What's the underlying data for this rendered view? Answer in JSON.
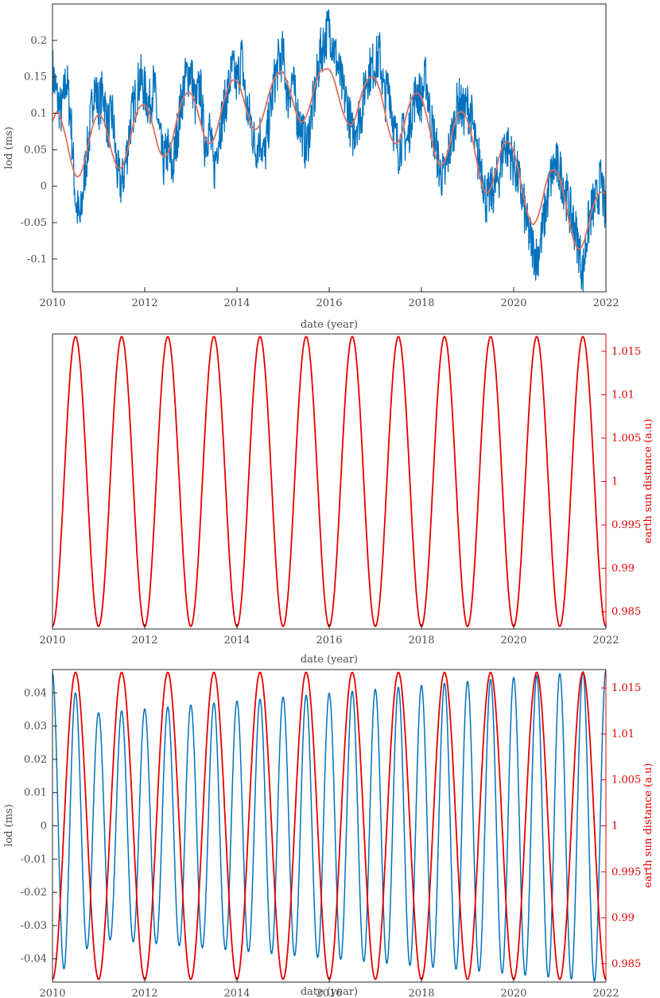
{
  "chart_data": [
    {
      "type": "line",
      "xlabel": "date (year)",
      "ylabel": "lod (ms)",
      "xlim": [
        2010,
        2022
      ],
      "ylim": [
        -0.145,
        0.25
      ],
      "xticks": [
        "2010",
        "2012",
        "2014",
        "2016",
        "2018",
        "2020",
        "2022"
      ],
      "yticks": [
        "-0.1",
        "-0.05",
        "0",
        "0.05",
        "0.1",
        "0.15",
        "0.2"
      ],
      "grid": false,
      "colors": [
        "#0072bd",
        "#e07060"
      ],
      "series": [
        {
          "x": [
            2010.0,
            2010.1,
            2010.2,
            2010.3,
            2010.4,
            2010.5,
            2010.6,
            2010.7,
            2010.8,
            2010.9,
            2011.0,
            2011.1,
            2011.2,
            2011.3,
            2011.4,
            2011.5,
            2011.6,
            2011.7,
            2011.8,
            2011.9,
            2012.0,
            2012.1,
            2012.2,
            2012.3,
            2012.4,
            2012.5,
            2012.6,
            2012.7,
            2012.8,
            2012.9,
            2013.0,
            2013.1,
            2013.2,
            2013.3,
            2013.4,
            2013.5,
            2013.6,
            2013.7,
            2013.8,
            2013.9,
            2014.0,
            2014.1,
            2014.2,
            2014.3,
            2014.4,
            2014.5,
            2014.6,
            2014.7,
            2014.8,
            2014.9,
            2015.0,
            2015.1,
            2015.2,
            2015.3,
            2015.4,
            2015.5,
            2015.6,
            2015.7,
            2015.8,
            2015.9,
            2016.0,
            2016.1,
            2016.2,
            2016.3,
            2016.4,
            2016.5,
            2016.6,
            2016.7,
            2016.8,
            2016.9,
            2017.0,
            2017.1,
            2017.2,
            2017.3,
            2017.4,
            2017.5,
            2017.6,
            2017.7,
            2017.8,
            2017.9,
            2018.0,
            2018.1,
            2018.2,
            2018.3,
            2018.4,
            2018.5,
            2018.6,
            2018.7,
            2018.8,
            2018.9,
            2019.0,
            2019.1,
            2019.2,
            2019.3,
            2019.4,
            2019.5,
            2019.6,
            2019.7,
            2019.8,
            2019.9,
            2020.0,
            2020.1,
            2020.2,
            2020.3,
            2020.4,
            2020.5,
            2020.6,
            2020.7,
            2020.8,
            2020.9,
            2021.0,
            2021.1,
            2021.2,
            2021.3,
            2021.4,
            2021.5,
            2021.6,
            2021.7,
            2021.8,
            2021.9,
            2022.0
          ],
          "values": [
            0.16,
            0.12,
            0.1,
            0.15,
            0.09,
            -0.02,
            -0.05,
            0.02,
            0.07,
            0.14,
            0.11,
            0.13,
            0.08,
            0.1,
            0.02,
            0.0,
            0.04,
            0.09,
            0.12,
            0.15,
            0.13,
            0.11,
            0.14,
            0.08,
            0.03,
            0.05,
            0.02,
            0.07,
            0.12,
            0.15,
            0.16,
            0.11,
            0.14,
            0.06,
            0.08,
            0.02,
            0.07,
            0.1,
            0.13,
            0.16,
            0.14,
            0.18,
            0.11,
            0.09,
            0.05,
            0.07,
            0.04,
            0.09,
            0.14,
            0.17,
            0.18,
            0.12,
            0.15,
            0.1,
            0.08,
            0.05,
            0.09,
            0.13,
            0.18,
            0.2,
            0.22,
            0.19,
            0.16,
            0.13,
            0.11,
            0.07,
            0.09,
            0.1,
            0.15,
            0.16,
            0.17,
            0.18,
            0.12,
            0.14,
            0.08,
            0.05,
            0.07,
            0.06,
            0.11,
            0.13,
            0.12,
            0.15,
            0.09,
            0.06,
            0.02,
            0.01,
            0.05,
            0.08,
            0.12,
            0.1,
            0.11,
            0.09,
            0.04,
            0.03,
            -0.02,
            -0.01,
            0.0,
            0.02,
            0.06,
            0.05,
            0.03,
            0.01,
            -0.02,
            -0.06,
            -0.08,
            -0.1,
            -0.07,
            -0.03,
            0.01,
            0.03,
            0.02,
            0.0,
            -0.03,
            -0.05,
            -0.08,
            -0.12,
            -0.06,
            -0.03,
            -0.02,
            0.01,
            -0.05
          ]
        },
        {
          "x": [
            2010.0,
            2010.1,
            2010.2,
            2010.3,
            2010.4,
            2010.5,
            2010.6,
            2010.7,
            2010.8,
            2010.9,
            2011.0,
            2011.1,
            2011.2,
            2011.3,
            2011.4,
            2011.5,
            2011.6,
            2011.7,
            2011.8,
            2011.9,
            2012.0,
            2012.1,
            2012.2,
            2012.3,
            2012.4,
            2012.5,
            2012.6,
            2012.7,
            2012.8,
            2012.9,
            2013.0,
            2013.1,
            2013.2,
            2013.3,
            2013.4,
            2013.5,
            2013.6,
            2013.7,
            2013.8,
            2013.9,
            2014.0,
            2014.1,
            2014.2,
            2014.3,
            2014.4,
            2014.5,
            2014.6,
            2014.7,
            2014.8,
            2014.9,
            2015.0,
            2015.1,
            2015.2,
            2015.3,
            2015.4,
            2015.5,
            2015.6,
            2015.7,
            2015.8,
            2015.9,
            2016.0,
            2016.1,
            2016.2,
            2016.3,
            2016.4,
            2016.5,
            2016.6,
            2016.7,
            2016.8,
            2016.9,
            2017.0,
            2017.1,
            2017.2,
            2017.3,
            2017.4,
            2017.5,
            2017.6,
            2017.7,
            2017.8,
            2017.9,
            2018.0,
            2018.1,
            2018.2,
            2018.3,
            2018.4,
            2018.5,
            2018.6,
            2018.7,
            2018.8,
            2018.9,
            2019.0,
            2019.1,
            2019.2,
            2019.3,
            2019.4,
            2019.5,
            2019.6,
            2019.7,
            2019.8,
            2019.9,
            2020.0,
            2020.1,
            2020.2,
            2020.3,
            2020.4,
            2020.5,
            2020.6,
            2020.7,
            2020.8,
            2020.9,
            2021.0,
            2021.1,
            2021.2,
            2021.3,
            2021.4,
            2021.5,
            2021.6,
            2021.7,
            2021.8,
            2021.9,
            2022.0
          ],
          "values": [
            0.09,
            0.102,
            0.088,
            0.064,
            0.035,
            0.015,
            0.016,
            0.035,
            0.064,
            0.088,
            0.098,
            0.091,
            0.07,
            0.044,
            0.027,
            0.026,
            0.043,
            0.07,
            0.096,
            0.109,
            0.111,
            0.1,
            0.077,
            0.052,
            0.041,
            0.045,
            0.064,
            0.092,
            0.115,
            0.127,
            0.127,
            0.113,
            0.09,
            0.068,
            0.059,
            0.065,
            0.086,
            0.113,
            0.134,
            0.145,
            0.144,
            0.129,
            0.106,
            0.086,
            0.078,
            0.085,
            0.104,
            0.128,
            0.146,
            0.155,
            0.156,
            0.14,
            0.119,
            0.098,
            0.088,
            0.096,
            0.115,
            0.139,
            0.157,
            0.16,
            0.16,
            0.147,
            0.124,
            0.101,
            0.087,
            0.085,
            0.101,
            0.126,
            0.143,
            0.15,
            0.147,
            0.131,
            0.104,
            0.075,
            0.06,
            0.061,
            0.078,
            0.104,
            0.122,
            0.128,
            0.121,
            0.099,
            0.071,
            0.042,
            0.029,
            0.034,
            0.054,
            0.082,
            0.1,
            0.101,
            0.089,
            0.066,
            0.034,
            0.004,
            -0.009,
            -0.003,
            0.018,
            0.043,
            0.059,
            0.06,
            0.047,
            0.022,
            -0.01,
            -0.037,
            -0.052,
            -0.046,
            -0.025,
            0.003,
            0.02,
            0.021,
            0.011,
            -0.015,
            -0.048,
            -0.074,
            -0.086,
            -0.08,
            -0.058,
            -0.033,
            -0.015,
            -0.008,
            -0.01
          ]
        }
      ]
    },
    {
      "type": "line",
      "xlabel": "date (year)",
      "ylabel_right": "earth sun distance (a.u)",
      "xlim": [
        2010,
        2022
      ],
      "ylim_right": [
        0.983,
        1.017
      ],
      "xticks": [
        "2010",
        "2012",
        "2014",
        "2016",
        "2018",
        "2020",
        "2022"
      ],
      "yticks_right": [
        "0.985",
        "0.99",
        "0.995",
        "1",
        "1.005",
        "1.01",
        "1.015"
      ],
      "grid": false,
      "colors": [
        "#e60000"
      ],
      "series": [
        {
          "function": "1 - 0.0167*cos(2*pi*(x - 2010))",
          "period_years": 1,
          "min": 0.9833,
          "max": 1.0167
        }
      ]
    },
    {
      "type": "line",
      "xlabel": "date (year)",
      "ylabel": "lod (ms)",
      "ylabel_right": "earth sun distance (a.u)",
      "xlim": [
        2010,
        2022
      ],
      "ylim": [
        -0.047,
        0.047
      ],
      "ylim_right": [
        0.983,
        1.017
      ],
      "xticks": [
        "2010",
        "2012",
        "2014",
        "2016",
        "2018",
        "2020",
        "2022"
      ],
      "yticks": [
        "-0.04",
        "-0.03",
        "-0.02",
        "-0.01",
        "0",
        "0.01",
        "0.02",
        "0.03",
        "0.04"
      ],
      "yticks_right": [
        "0.985",
        "0.99",
        "0.995",
        "1",
        "1.005",
        "1.01",
        "1.015"
      ],
      "grid": false,
      "colors": [
        "#0072bd",
        "#e60000"
      ],
      "series": [
        {
          "axis": "left",
          "function": "A(x)*cos(2*pi*(x - 2010)/0.5)",
          "period_years": 0.5,
          "amplitude_start": 0.046,
          "amplitude_end": 0.047,
          "amplitude_2011": 0.034
        },
        {
          "axis": "right",
          "function": "1 - 0.0167*cos(2*pi*(x - 2010))",
          "period_years": 1,
          "min": 0.9833,
          "max": 1.0167
        }
      ]
    }
  ]
}
